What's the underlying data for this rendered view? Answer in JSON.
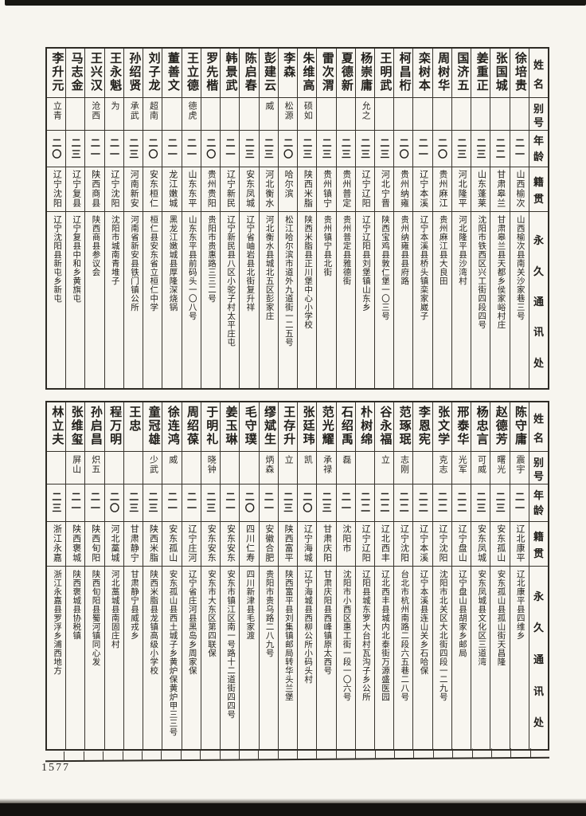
{
  "page_number": "1577",
  "headers": {
    "name": "姓名",
    "alias": "别号",
    "age": "年龄",
    "origin": "籍贯",
    "address": "永久通讯处"
  },
  "tables": [
    {
      "entries": [
        {
          "name": "李升元",
          "alias": "立青",
          "age": "二〇",
          "origin": "辽宁沈阳",
          "address": "辽宁沈阳县新屯乡新屯"
        },
        {
          "name": "马志金",
          "alias": "",
          "age": "二三",
          "origin": "辽宁复县",
          "address": "辽宁复县中和乡黄旗屯"
        },
        {
          "name": "王兴汉",
          "alias": "沧西",
          "age": "二一",
          "origin": "陕西商县",
          "address": "陕西商县参议会"
        },
        {
          "name": "王永魁",
          "alias": "为",
          "age": "二一",
          "origin": "辽宁沈阳",
          "address": "沈阳市城南青堆子"
        },
        {
          "name": "孙绍贤",
          "alias": "承武",
          "age": "二三",
          "origin": "河南新安",
          "address": "河南省新安县铁门镇公所"
        },
        {
          "name": "刘子龙",
          "alias": "超南",
          "age": "二〇",
          "origin": "安东桓仁",
          "address": "桓仁县安东省立桓仁中学"
        },
        {
          "name": "董善文",
          "alias": "",
          "age": "二一",
          "origin": "龙江嫩城",
          "address": "黑龙江嫩城县厚隆深烧锅"
        },
        {
          "name": "王立德",
          "alias": "德虎",
          "age": "二一",
          "origin": "山东东平",
          "address": "山东东平县前码头一〇八号"
        },
        {
          "name": "罗先楷",
          "alias": "",
          "age": "二〇",
          "origin": "贵州贵阳",
          "address": "贵阳市贵惠路三三二号"
        },
        {
          "name": "韩景武",
          "alias": "",
          "age": "二一",
          "origin": "辽宁新民",
          "address": "辽宁新民县八区小驼子村太平庄屯"
        },
        {
          "name": "陈启春",
          "alias": "",
          "age": "二三",
          "origin": "安东凤城",
          "address": "辽宁省岫岩县北街复升祥"
        },
        {
          "name": "彭建云",
          "alias": "威",
          "age": "二三",
          "origin": "河北衡水",
          "address": "河北衡水县城北五区彭家庄"
        },
        {
          "name": "李森",
          "alias": "松源",
          "age": "二〇",
          "origin": "哈尔滨",
          "address": "松江哈尔滨市道外九道街一二五号"
        },
        {
          "name": "朱维高",
          "alias": "硕如",
          "age": "二三",
          "origin": "陕西米脂",
          "address": "陕西米脂县正川堡中心小学校"
        },
        {
          "name": "雷次渭",
          "alias": "",
          "age": "二三",
          "origin": "贵州镇宁",
          "address": "贵州镇宁县北街"
        },
        {
          "name": "夏德新",
          "alias": "",
          "age": "二三",
          "origin": "贵州普定",
          "address": "贵州普定县雅德街"
        },
        {
          "name": "杨崇庸",
          "alias": "允之",
          "age": "二三",
          "origin": "辽宁辽阳",
          "address": "辽宁辽阳县刘堡镇山东乡"
        },
        {
          "name": "王明武",
          "alias": "",
          "age": "二三",
          "origin": "河北宁晋",
          "address": "陕西宝鸡县敦仁堡一〇三号"
        },
        {
          "name": "柯昌桁",
          "alias": "",
          "age": "二〇",
          "origin": "贵州纳雍",
          "address": "贵州纳雍县县府路"
        },
        {
          "name": "栾树本",
          "alias": "",
          "age": "二一",
          "origin": "辽宁本溪",
          "address": "辽宁本溪县桥头镇栾家崴子"
        },
        {
          "name": "周树华",
          "alias": "",
          "age": "二〇",
          "origin": "贵州麻江",
          "address": "贵州麻江县大良田"
        },
        {
          "name": "国济五",
          "alias": "",
          "age": "二三",
          "origin": "河北隆平",
          "address": "河北隆平县沙湾村"
        },
        {
          "name": "姜重正",
          "alias": "",
          "age": "二三",
          "origin": "山东蓬莱",
          "address": "沈阳市铁西区兴工街四段四号"
        },
        {
          "name": "张国城",
          "alias": "",
          "age": "二二",
          "origin": "甘肃皋兰",
          "address": "甘肃皋兰县天都乡侯家峪村庄"
        },
        {
          "name": "徐培贵",
          "alias": "",
          "age": "二一",
          "origin": "山西榆次",
          "address": "山西榆次县南关沙家巷三号"
        }
      ]
    },
    {
      "entries": [
        {
          "name": "林立夫",
          "alias": "",
          "age": "二三",
          "origin": "浙江永嘉",
          "address": "浙江永嘉县罗浮乡浦西地方"
        },
        {
          "name": "张维玺",
          "alias": "屏山",
          "age": "二一",
          "origin": "陕西褒城",
          "address": "陕西褒城县协税镇"
        },
        {
          "name": "孙启昌",
          "alias": "炽五",
          "age": "二一",
          "origin": "陕西旬阳",
          "address": "陕西旬阳县蜀河镇同心发"
        },
        {
          "name": "程万明",
          "alias": "",
          "age": "二〇",
          "origin": "河北藁城",
          "address": "河北藁城县南固庄村"
        },
        {
          "name": "王忠",
          "alias": "",
          "age": "二三",
          "origin": "甘肃静宁",
          "address": "甘肃静宁县威戎乡"
        },
        {
          "name": "童冠雄",
          "alias": "少武",
          "age": "二三",
          "origin": "陕西米脂",
          "address": "陕西米脂县龙镇高级小学校"
        },
        {
          "name": "徐连鸿",
          "alias": "威",
          "age": "二一",
          "origin": "安东孤山",
          "address": "安东孤山县西土城子乡黄炉保黄炉甲三三号"
        },
        {
          "name": "周绍葆",
          "alias": "",
          "age": "二一",
          "origin": "辽宁庄河",
          "address": "辽宁省庄河县黑岛乡周家保"
        },
        {
          "name": "于明礼",
          "alias": "晓钟",
          "age": "二三",
          "origin": "安东安东",
          "address": "安东市大东区第四联保"
        },
        {
          "name": "姜玉琳",
          "alias": "",
          "age": "二一",
          "origin": "安东安东",
          "address": "安东市镇江区南一号路十二道街四四号"
        },
        {
          "name": "毛守璞",
          "alias": "",
          "age": "二〇",
          "origin": "四川仁寿",
          "address": "四川新津县毛家渡"
        },
        {
          "name": "缪斌生",
          "alias": "炳森",
          "age": "二一",
          "origin": "安徽合肥",
          "address": "贵阳市贵乌路二八九号"
        },
        {
          "name": "王存升",
          "alias": "立",
          "age": "二三",
          "origin": "陕西富平",
          "address": "陕西富平县刘集镇邮局转华头兰堡"
        },
        {
          "name": "张廷玮",
          "alias": "凯",
          "age": "二〇",
          "origin": "辽宁海城",
          "address": "辽宁海城县西柳公所小码头村"
        },
        {
          "name": "范光耀",
          "alias": "承禄",
          "age": "二三",
          "origin": "甘肃庆阳",
          "address": "甘肃庆阳县西峰镇原太西号"
        },
        {
          "name": "石绍禹",
          "alias": "磊",
          "age": "二一",
          "origin": "沈阳市",
          "address": "沈阳市小西区惠工街一段一〇六号"
        },
        {
          "name": "朴树绵",
          "alias": "",
          "age": "二二",
          "origin": "辽宁辽阳",
          "address": "辽阳县城东罗大台村瓦沟子乡公所"
        },
        {
          "name": "谷永福",
          "alias": "立",
          "age": "二二",
          "origin": "辽北西丰",
          "address": "辽北西丰县城内北泰街万源盛医园"
        },
        {
          "name": "范琢珉",
          "alias": "志刚",
          "age": "二二",
          "origin": "辽宁沈阳",
          "address": "台北市杭州南路二段六五巷二八号"
        },
        {
          "name": "李恩宪",
          "alias": "",
          "age": "二二",
          "origin": "辽宁本溪",
          "address": "辽宁本溪县连山关乡石哈保"
        },
        {
          "name": "张文学",
          "alias": "克志",
          "age": "二二",
          "origin": "辽宁沈阳",
          "address": "沈阳市北关区大北街四段一二九号"
        },
        {
          "name": "邢泰华",
          "alias": "光军",
          "age": "二二",
          "origin": "辽宁盘山",
          "address": "辽宁盘山县胡家乡邮局"
        },
        {
          "name": "杨忠言",
          "alias": "可威",
          "age": "二三",
          "origin": "安东凤城",
          "address": "安东凤城县文化区三道湾"
        },
        {
          "name": "赵德芳",
          "alias": "曙光",
          "age": "二三",
          "origin": "安东孤山",
          "address": "安东孤山县孤山街天昌隆"
        },
        {
          "name": "陈守庸",
          "alias": "震宇",
          "age": "二一",
          "origin": "辽北康平",
          "address": "辽北康平县四维乡"
        }
      ]
    }
  ]
}
